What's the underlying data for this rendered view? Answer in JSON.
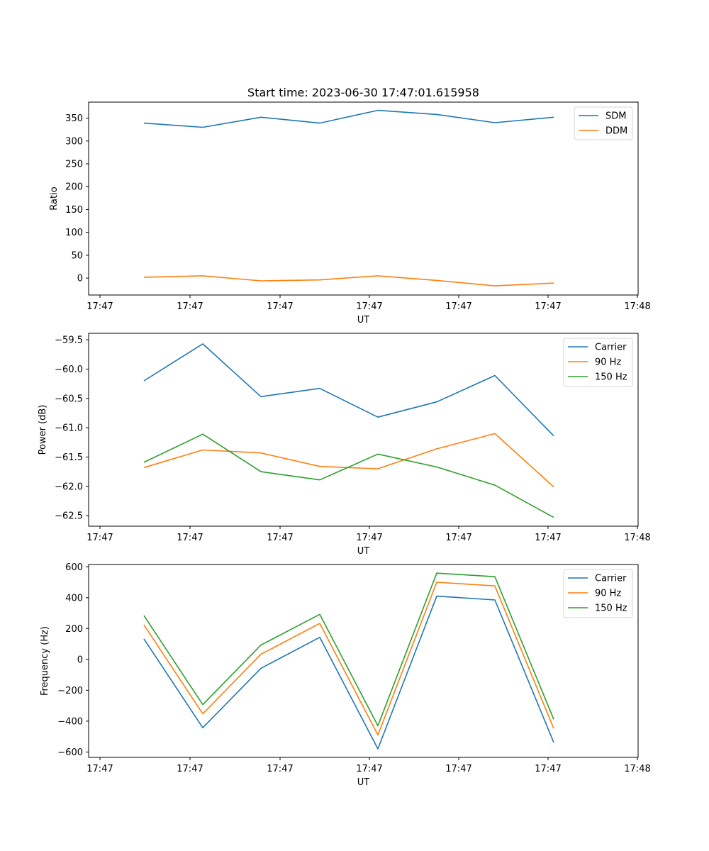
{
  "figure_title": "Start time: 2023-06-30 17:47:01.615958",
  "chart_data": [
    {
      "type": "line",
      "title": "Start time: 2023-06-30 17:47:01.615958",
      "xlabel": "UT",
      "ylabel": "Ratio",
      "x_tick_labels": [
        "17:47",
        "17:47",
        "17:47",
        "17:47",
        "17:47",
        "17:47",
        "17:48"
      ],
      "y_ticks": [
        0,
        50,
        100,
        150,
        200,
        250,
        300,
        350
      ],
      "y_tick_labels": [
        "0",
        "50",
        "100",
        "150",
        "200",
        "250",
        "300",
        "350"
      ],
      "ylim": [
        -37,
        385
      ],
      "legend_position": "upper right",
      "series": [
        {
          "name": "SDM",
          "color": "#1f77b4",
          "values": [
            339,
            330,
            352,
            339,
            367,
            358,
            340,
            352
          ]
        },
        {
          "name": "DDM",
          "color": "#ff7f0e",
          "values": [
            2,
            5,
            -6,
            -4,
            5,
            -5,
            -17,
            -11
          ]
        }
      ]
    },
    {
      "type": "line",
      "title": "",
      "xlabel": "UT",
      "ylabel": "Power (dB)",
      "x_tick_labels": [
        "17:47",
        "17:47",
        "17:47",
        "17:47",
        "17:47",
        "17:47",
        "17:48"
      ],
      "y_ticks": [
        -59.5,
        -60.0,
        -60.5,
        -61.0,
        -61.5,
        -62.0,
        -62.5
      ],
      "y_tick_labels": [
        "−59.5",
        "−60.0",
        "−60.5",
        "−61.0",
        "−61.5",
        "−62.0",
        "−62.5"
      ],
      "ylim": [
        -62.68,
        -59.39
      ],
      "legend_position": "upper right",
      "series": [
        {
          "name": "Carrier",
          "color": "#1f77b4",
          "values": [
            -60.2,
            -59.57,
            -60.47,
            -60.33,
            -60.82,
            -60.56,
            -60.11,
            -61.14
          ]
        },
        {
          "name": "90 Hz",
          "color": "#ff7f0e",
          "values": [
            -61.68,
            -61.38,
            -61.43,
            -61.66,
            -61.7,
            -61.36,
            -61.1,
            -62.01
          ]
        },
        {
          "name": "150 Hz",
          "color": "#2ca02c",
          "values": [
            -61.59,
            -61.11,
            -61.75,
            -61.89,
            -61.45,
            -61.67,
            -61.98,
            -62.53
          ]
        }
      ]
    },
    {
      "type": "line",
      "title": "",
      "xlabel": "UT",
      "ylabel": "Frequency (Hz)",
      "x_tick_labels": [
        "17:47",
        "17:47",
        "17:47",
        "17:47",
        "17:47",
        "17:47",
        "17:48"
      ],
      "y_ticks": [
        600,
        400,
        200,
        0,
        -200,
        -400,
        -600
      ],
      "y_tick_labels": [
        "600",
        "400",
        "200",
        "0",
        "−200",
        "−400",
        "−600"
      ],
      "ylim": [
        -635,
        615
      ],
      "legend_position": "upper right",
      "series": [
        {
          "name": "Carrier",
          "color": "#1f77b4",
          "values": [
            133,
            -443,
            -58,
            143,
            -580,
            410,
            385,
            -538
          ]
        },
        {
          "name": "90 Hz",
          "color": "#ff7f0e",
          "values": [
            224,
            -353,
            33,
            233,
            -490,
            500,
            476,
            -448
          ]
        },
        {
          "name": "150 Hz",
          "color": "#2ca02c",
          "values": [
            284,
            -293,
            93,
            292,
            -430,
            559,
            536,
            -388
          ]
        }
      ]
    }
  ]
}
